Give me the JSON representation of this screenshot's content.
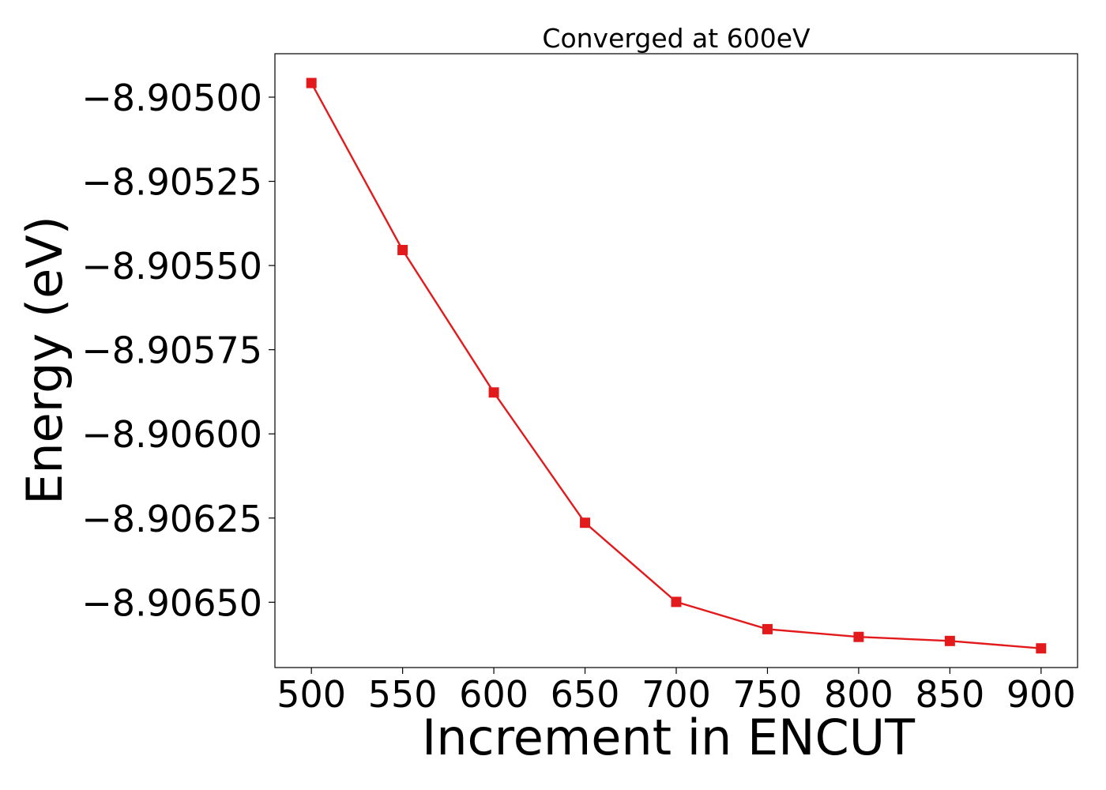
{
  "chart_data": {
    "type": "line",
    "title": "Converged at 600eV",
    "xlabel": "Increment in ENCUT",
    "ylabel": "Energy (eV)",
    "x": [
      500,
      550,
      600,
      650,
      700,
      750,
      800,
      850,
      900
    ],
    "xticks": [
      500,
      550,
      600,
      650,
      700,
      750,
      800,
      850,
      900
    ],
    "xtick_labels": [
      "500",
      "550",
      "600",
      "650",
      "700",
      "750",
      "800",
      "850",
      "900"
    ],
    "yticks": [
      -8.905,
      -8.90525,
      -8.9055,
      -8.90575,
      -8.906,
      -8.90625,
      -8.9065
    ],
    "ytick_labels": [
      "−8.90500",
      "−8.90525",
      "−8.90550",
      "−8.90575",
      "−8.90600",
      "−8.90625",
      "−8.90650"
    ],
    "xlim": [
      480,
      920
    ],
    "ylim": [
      -8.906694,
      -8.904871
    ],
    "grid": false,
    "series": [
      {
        "color": "#e31a1c",
        "marker": "square",
        "values": [
          -8.904958,
          -8.905454,
          -8.905877,
          -8.906264,
          -8.906499,
          -8.90658,
          -8.906603,
          -8.906615,
          -8.906637
        ]
      }
    ]
  }
}
